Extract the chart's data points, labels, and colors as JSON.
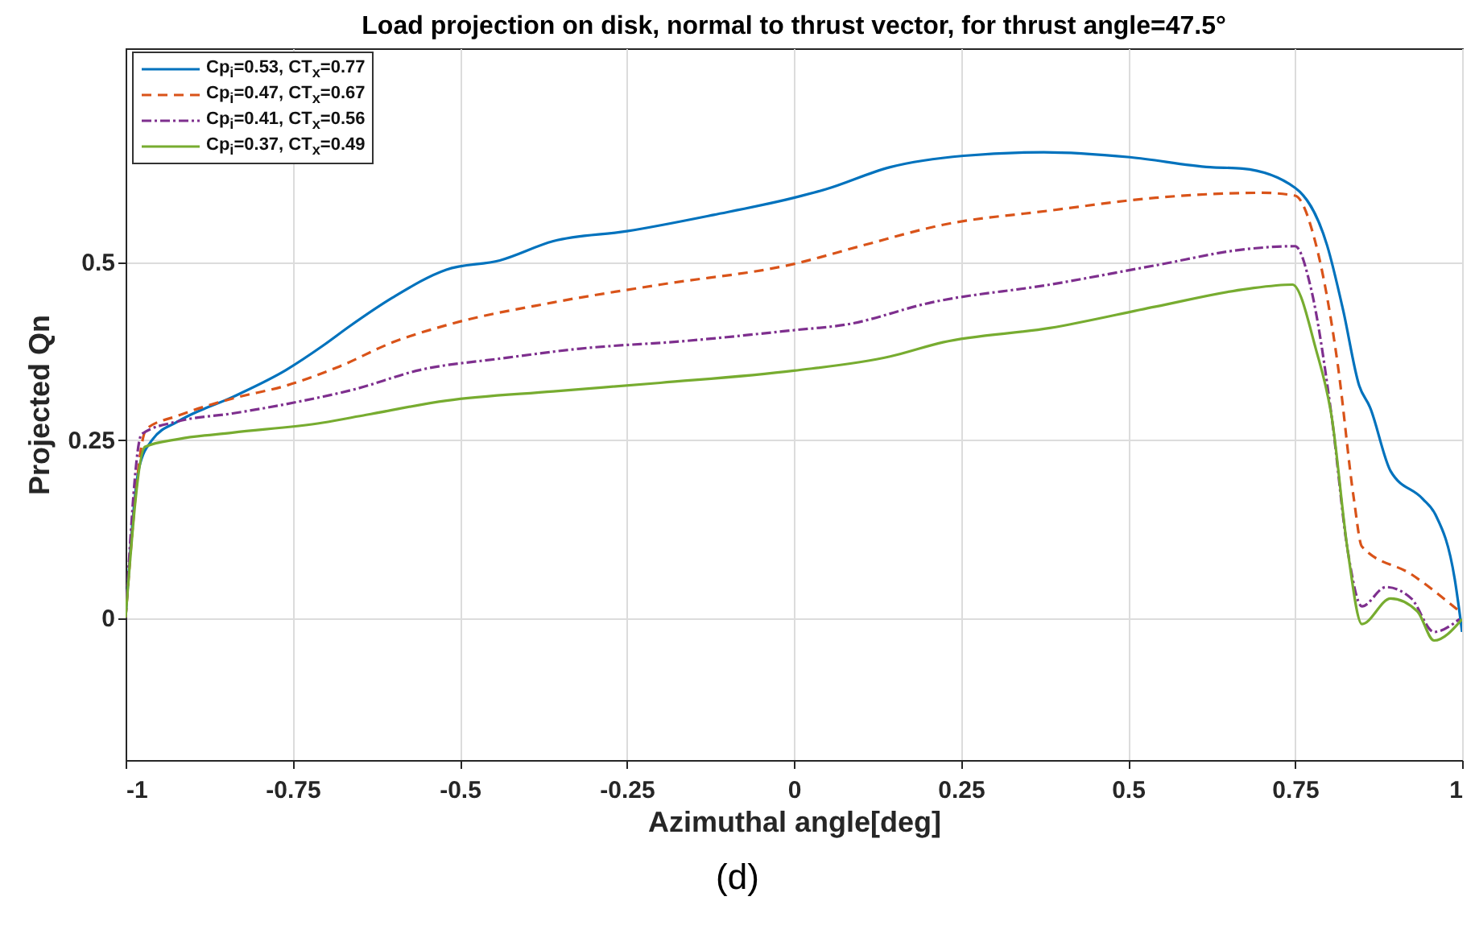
{
  "chart_data": {
    "type": "line",
    "title": "Load projection on disk, normal to thrust vector, for thrust angle=47.5°",
    "xlabel": "Azimuthal angle[deg]",
    "ylabel": "Projected Qn",
    "annotations": [
      "(d)"
    ],
    "xlim": [
      -1,
      1
    ],
    "ylim": [
      -0.2,
      0.8
    ],
    "xticks": [
      -1,
      -0.75,
      -0.5,
      -0.25,
      0,
      0.25,
      0.5,
      0.75,
      1
    ],
    "yticks": [
      0,
      0.25,
      0.5
    ],
    "grid": true,
    "legend": "top left",
    "series": [
      {
        "name": "Cp$_{i}$=0.53, CT$_{x}$=0.77",
        "color": "#0072bd",
        "line_style": "solid",
        "x": [
          -1,
          -0.98,
          -0.96,
          -0.921,
          -0.84,
          -0.76,
          -0.705,
          -0.664,
          -0.6,
          -0.52,
          -0.44,
          -0.36,
          -0.25,
          -0.12,
          0.0,
          0.048,
          0.144,
          0.254,
          0.374,
          0.503,
          0.623,
          0.671,
          0.75,
          0.798,
          0.822,
          0.846,
          0.862,
          0.893,
          0.941,
          0.96,
          0.989,
          1.0
        ],
        "values": [
          0.0,
          0.21,
          0.25,
          0.276,
          0.31,
          0.348,
          0.382,
          0.41,
          0.45,
          0.489,
          0.502,
          0.529,
          0.543,
          0.566,
          0.59,
          0.602,
          0.633,
          0.649,
          0.654,
          0.647,
          0.633,
          0.631,
          0.604,
          0.523,
          0.432,
          0.326,
          0.296,
          0.206,
          0.167,
          0.145,
          0.054,
          -0.02
        ]
      },
      {
        "name": "Cp$_{i}$=0.47, CT$_{x}$=0.67",
        "color": "#d95319",
        "line_style": "dashed",
        "x": [
          -1,
          -0.969,
          -0.921,
          -0.84,
          -0.76,
          -0.68,
          -0.6,
          -0.52,
          -0.36,
          -0.2,
          0.0,
          0.103,
          0.223,
          0.383,
          0.541,
          0.701,
          0.75,
          0.78,
          0.814,
          0.838,
          0.85,
          0.924,
          0.996
        ],
        "values": [
          0.0,
          0.265,
          0.284,
          0.308,
          0.326,
          0.353,
          0.387,
          0.411,
          0.443,
          0.468,
          0.497,
          0.523,
          0.552,
          0.572,
          0.59,
          0.597,
          0.593,
          0.529,
          0.355,
          0.167,
          0.1,
          0.061,
          0.009
        ]
      },
      {
        "name": "Cp$_{i}$=0.41, CT$_{x}$=0.56",
        "color": "#7e2f8e",
        "line_style": "dashdot",
        "x": [
          -1,
          -0.976,
          -0.921,
          -0.84,
          -0.744,
          -0.657,
          -0.56,
          -0.44,
          -0.32,
          -0.16,
          0.0,
          0.079,
          0.206,
          0.383,
          0.541,
          0.678,
          0.75,
          0.774,
          0.805,
          0.829,
          0.85,
          0.886,
          0.924,
          0.958,
          0.996
        ],
        "values": [
          0.0,
          0.258,
          0.276,
          0.287,
          0.303,
          0.321,
          0.348,
          0.364,
          0.378,
          0.389,
          0.404,
          0.412,
          0.443,
          0.468,
          0.495,
          0.518,
          0.522,
          0.462,
          0.281,
          0.093,
          0.016,
          0.043,
          0.027,
          -0.02,
          -0.002
        ]
      },
      {
        "name": "Cp$_{i}$=0.37, CT$_{x}$=0.49",
        "color": "#77ac30",
        "line_style": "solid",
        "x": [
          -1,
          -0.971,
          -0.921,
          -0.84,
          -0.705,
          -0.64,
          -0.52,
          -0.36,
          -0.2,
          0.0,
          0.144,
          0.223,
          0.383,
          0.541,
          0.678,
          0.746,
          0.781,
          0.805,
          0.829,
          0.85,
          0.893,
          0.933,
          0.958,
          1.0
        ],
        "values": [
          0.0,
          0.24,
          0.251,
          0.26,
          0.274,
          0.285,
          0.305,
          0.318,
          0.33,
          0.347,
          0.367,
          0.387,
          0.407,
          0.437,
          0.462,
          0.468,
          0.378,
          0.281,
          0.093,
          -0.009,
          0.027,
          0.009,
          -0.032,
          -0.002
        ]
      }
    ]
  }
}
